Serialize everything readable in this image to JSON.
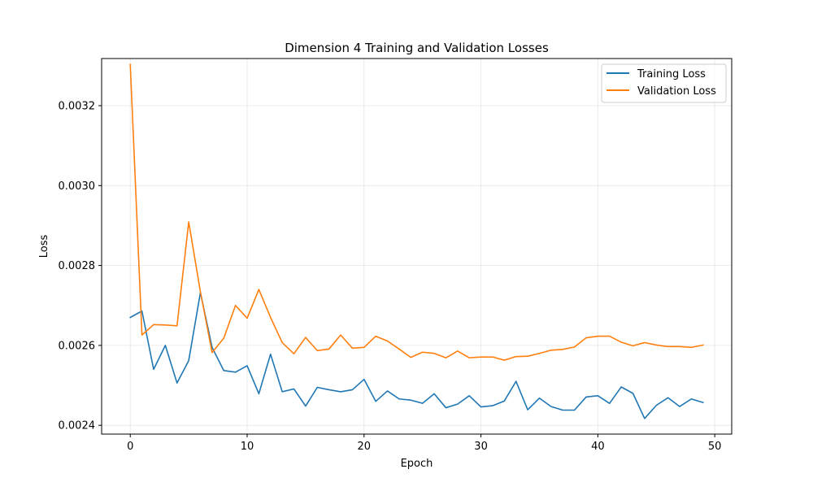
{
  "chart_data": {
    "type": "line",
    "title": "Dimension 4 Training and Validation Losses",
    "xlabel": "Epoch",
    "ylabel": "Loss",
    "xlim": [
      -2.45,
      51.45
    ],
    "ylim": [
      0.002378,
      0.003318
    ],
    "xticks": [
      0,
      10,
      20,
      30,
      40,
      50
    ],
    "xtick_labels": [
      "0",
      "10",
      "20",
      "30",
      "40",
      "50"
    ],
    "yticks": [
      0.0024,
      0.0026,
      0.0028,
      0.003,
      0.0032
    ],
    "ytick_labels": [
      "0.0024",
      "0.0026",
      "0.0028",
      "0.0030",
      "0.0032"
    ],
    "grid": true,
    "legend_position": "top-right",
    "x": [
      0,
      1,
      2,
      3,
      4,
      5,
      6,
      7,
      8,
      9,
      10,
      11,
      12,
      13,
      14,
      15,
      16,
      17,
      18,
      19,
      20,
      21,
      22,
      23,
      24,
      25,
      26,
      27,
      28,
      29,
      30,
      31,
      32,
      33,
      34,
      35,
      36,
      37,
      38,
      39,
      40,
      41,
      42,
      43,
      44,
      45,
      46,
      47,
      48,
      49
    ],
    "series": [
      {
        "name": "Training Loss",
        "color": "#1f77b4",
        "values": [
          0.00267,
          0.002686,
          0.00254,
          0.0026,
          0.002506,
          0.002562,
          0.002732,
          0.002595,
          0.002537,
          0.002533,
          0.002549,
          0.002479,
          0.002578,
          0.002484,
          0.002491,
          0.002448,
          0.002495,
          0.002489,
          0.002484,
          0.002489,
          0.002515,
          0.00246,
          0.002486,
          0.002466,
          0.002463,
          0.002455,
          0.002479,
          0.002444,
          0.002453,
          0.002474,
          0.002446,
          0.002449,
          0.002461,
          0.00251,
          0.002439,
          0.002468,
          0.002447,
          0.002438,
          0.002438,
          0.002471,
          0.002474,
          0.002455,
          0.002496,
          0.00248,
          0.002417,
          0.00245,
          0.002469,
          0.002447,
          0.002466,
          0.002457
        ]
      },
      {
        "name": "Validation Loss",
        "color": "#ff7f0e",
        "values": [
          0.003303,
          0.002626,
          0.002652,
          0.002651,
          0.002649,
          0.002909,
          0.002734,
          0.002582,
          0.002618,
          0.0027,
          0.002668,
          0.00274,
          0.00267,
          0.002607,
          0.002579,
          0.00262,
          0.002587,
          0.002591,
          0.002626,
          0.002593,
          0.002595,
          0.002623,
          0.002611,
          0.002591,
          0.00257,
          0.002583,
          0.00258,
          0.002569,
          0.002586,
          0.002569,
          0.002571,
          0.002571,
          0.002563,
          0.002572,
          0.002573,
          0.00258,
          0.002588,
          0.00259,
          0.002596,
          0.002619,
          0.002623,
          0.002623,
          0.002608,
          0.002599,
          0.002607,
          0.002601,
          0.002597,
          0.002597,
          0.002595,
          0.002601
        ]
      }
    ]
  }
}
